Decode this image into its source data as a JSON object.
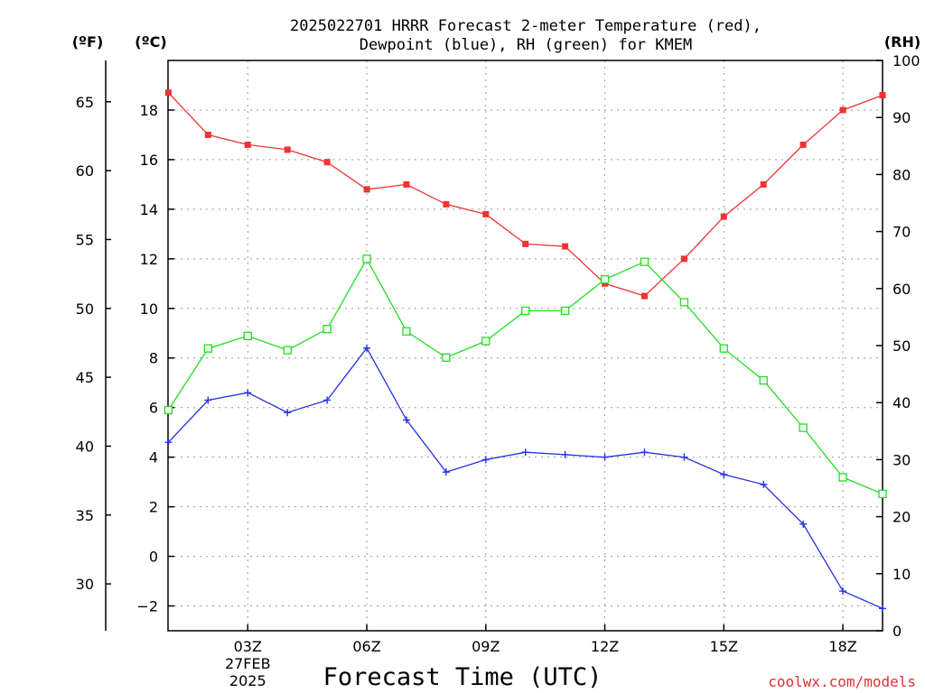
{
  "chart_data": {
    "type": "line",
    "title_lines": [
      "2025022701 HRRR Forecast 2-meter Temperature (red),",
      "Dewpoint (blue), RH (green) for KMEM"
    ],
    "xlabel": "Forecast Time (UTC)",
    "x": [
      "01Z",
      "02Z",
      "03Z",
      "04Z",
      "05Z",
      "06Z",
      "07Z",
      "08Z",
      "09Z",
      "10Z",
      "11Z",
      "12Z",
      "13Z",
      "14Z",
      "15Z",
      "16Z",
      "17Z",
      "18Z",
      "19Z"
    ],
    "xlim": [
      0.99,
      19
    ],
    "x_ticks": [
      {
        "h": 3,
        "lines": [
          "03Z",
          "27FEB",
          "2025"
        ]
      },
      {
        "h": 6,
        "lines": [
          "06Z"
        ]
      },
      {
        "h": 9,
        "lines": [
          "09Z"
        ]
      },
      {
        "h": 12,
        "lines": [
          "12Z"
        ]
      },
      {
        "h": 15,
        "lines": [
          "15Z"
        ]
      },
      {
        "h": 18,
        "lines": [
          "18Z"
        ]
      }
    ],
    "y_celsius": {
      "label": "(ºC)",
      "lim": [
        -3,
        20
      ],
      "ticks": [
        -2,
        0,
        2,
        4,
        6,
        8,
        10,
        12,
        14,
        16,
        18
      ]
    },
    "y_fahrenheit": {
      "label": "(ºF)",
      "lim": [
        26.6,
        68
      ],
      "ticks": [
        30,
        35,
        40,
        45,
        50,
        55,
        60,
        65
      ]
    },
    "y_rh": {
      "label": "(RH)",
      "lim": [
        0,
        100
      ],
      "ticks": [
        0,
        10,
        20,
        30,
        40,
        50,
        60,
        70,
        80,
        90,
        100
      ]
    },
    "series": [
      {
        "key": "temperature",
        "color": "#ee3333",
        "marker": "filled-square",
        "axis": "c",
        "values": [
          18.7,
          17.0,
          16.6,
          16.4,
          15.9,
          14.8,
          15.0,
          14.2,
          13.8,
          12.6,
          12.5,
          11.0,
          10.5,
          12.0,
          13.7,
          15.0,
          16.6,
          18.0,
          18.6
        ]
      },
      {
        "key": "dewpoint",
        "color": "#2233dd",
        "marker": "plus",
        "axis": "c",
        "values": [
          4.6,
          6.3,
          6.6,
          5.8,
          6.3,
          8.4,
          5.5,
          3.4,
          3.9,
          4.2,
          4.1,
          4.0,
          4.2,
          4.0,
          3.3,
          2.9,
          1.3,
          -1.4,
          -2.1
        ]
      },
      {
        "key": "rh",
        "color": "#22dd22",
        "marker": "open-square",
        "axis": "rh",
        "values": [
          38.7,
          49.5,
          51.7,
          49.2,
          52.9,
          65.2,
          52.5,
          47.9,
          50.8,
          56.1,
          56.1,
          61.6,
          64.7,
          57.6,
          49.5,
          43.9,
          35.6,
          26.9,
          24.0
        ]
      }
    ]
  },
  "credit": {
    "text": "coolwx.com/models",
    "color": "#e03030"
  }
}
